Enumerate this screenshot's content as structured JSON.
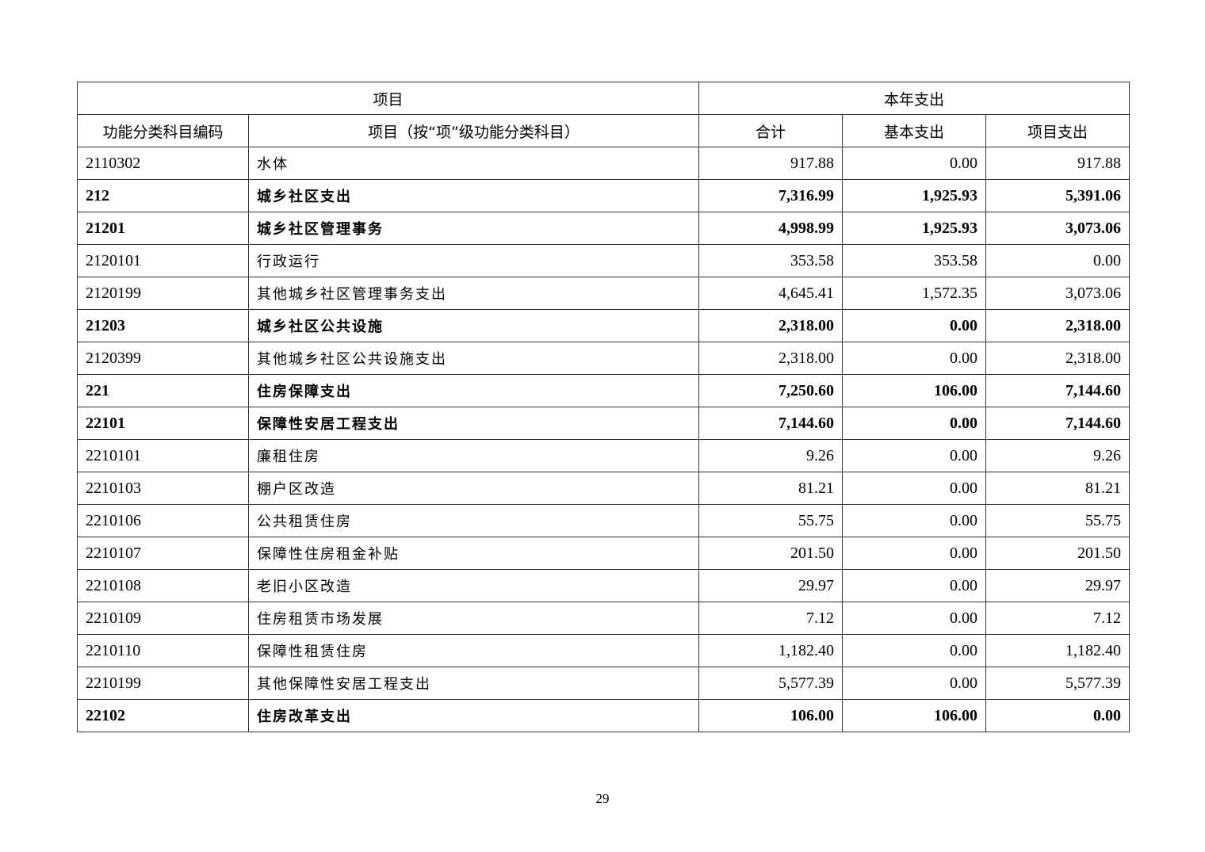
{
  "header": {
    "group_item": "项目",
    "group_year": "本年支出",
    "col_code": "功能分类科目编码",
    "col_name": "项目（按“项”级功能分类科目）",
    "col_total": "合计",
    "col_basic": "基本支出",
    "col_project": "项目支出"
  },
  "rows": [
    {
      "code": "2110302",
      "name": "水体",
      "total": "917.88",
      "basic": "0.00",
      "project": "917.88",
      "bold": false
    },
    {
      "code": "212",
      "name": "城乡社区支出",
      "total": "7,316.99",
      "basic": "1,925.93",
      "project": "5,391.06",
      "bold": true
    },
    {
      "code": "21201",
      "name": "城乡社区管理事务",
      "total": "4,998.99",
      "basic": "1,925.93",
      "project": "3,073.06",
      "bold": true
    },
    {
      "code": "2120101",
      "name": "行政运行",
      "total": "353.58",
      "basic": "353.58",
      "project": "0.00",
      "bold": false
    },
    {
      "code": "2120199",
      "name": "其他城乡社区管理事务支出",
      "total": "4,645.41",
      "basic": "1,572.35",
      "project": "3,073.06",
      "bold": false
    },
    {
      "code": "21203",
      "name": "城乡社区公共设施",
      "total": "2,318.00",
      "basic": "0.00",
      "project": "2,318.00",
      "bold": true
    },
    {
      "code": "2120399",
      "name": "其他城乡社区公共设施支出",
      "total": "2,318.00",
      "basic": "0.00",
      "project": "2,318.00",
      "bold": false
    },
    {
      "code": "221",
      "name": "住房保障支出",
      "total": "7,250.60",
      "basic": "106.00",
      "project": "7,144.60",
      "bold": true
    },
    {
      "code": "22101",
      "name": "保障性安居工程支出",
      "total": "7,144.60",
      "basic": "0.00",
      "project": "7,144.60",
      "bold": true
    },
    {
      "code": "2210101",
      "name": "廉租住房",
      "total": "9.26",
      "basic": "0.00",
      "project": "9.26",
      "bold": false
    },
    {
      "code": "2210103",
      "name": "棚户区改造",
      "total": "81.21",
      "basic": "0.00",
      "project": "81.21",
      "bold": false
    },
    {
      "code": "2210106",
      "name": "公共租赁住房",
      "total": "55.75",
      "basic": "0.00",
      "project": "55.75",
      "bold": false
    },
    {
      "code": "2210107",
      "name": "保障性住房租金补贴",
      "total": "201.50",
      "basic": "0.00",
      "project": "201.50",
      "bold": false
    },
    {
      "code": "2210108",
      "name": "老旧小区改造",
      "total": "29.97",
      "basic": "0.00",
      "project": "29.97",
      "bold": false
    },
    {
      "code": "2210109",
      "name": "住房租赁市场发展",
      "total": "7.12",
      "basic": "0.00",
      "project": "7.12",
      "bold": false
    },
    {
      "code": "2210110",
      "name": "保障性租赁住房",
      "total": "1,182.40",
      "basic": "0.00",
      "project": "1,182.40",
      "bold": false
    },
    {
      "code": "2210199",
      "name": "其他保障性安居工程支出",
      "total": "5,577.39",
      "basic": "0.00",
      "project": "5,577.39",
      "bold": false
    },
    {
      "code": "22102",
      "name": "住房改革支出",
      "total": "106.00",
      "basic": "106.00",
      "project": "0.00",
      "bold": true
    }
  ],
  "page_number": "29"
}
